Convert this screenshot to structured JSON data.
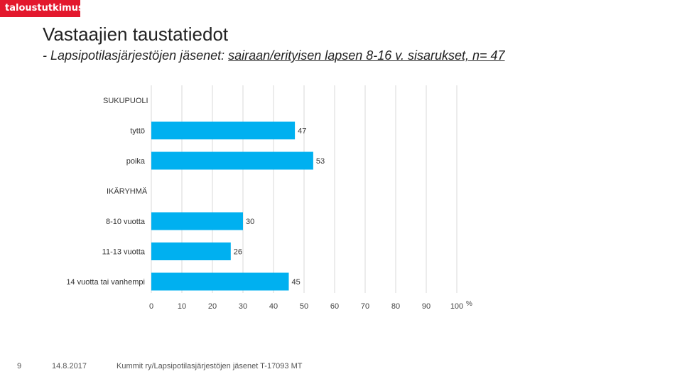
{
  "brand": {
    "logo_text": "taloustutkimus",
    "color": "#e3182d"
  },
  "header": {
    "title": "Vastaajien taustatiedot",
    "subtitle_prefix": "- Lapsipotilasjärjestöjen jäsenet: ",
    "subtitle_underlined": "sairaan/erityisen lapsen 8-16 v. sisarukset, n= 47"
  },
  "chart_data": {
    "type": "bar",
    "orientation": "horizontal",
    "unit_label": "%",
    "xlim": [
      0,
      100
    ],
    "ticks": [
      "0",
      "10",
      "20",
      "30",
      "40",
      "50",
      "60",
      "70",
      "80",
      "90",
      "100"
    ],
    "bar_color": "#00b0f0",
    "rows": [
      {
        "kind": "heading",
        "label": "SUKUPUOLI"
      },
      {
        "kind": "bar",
        "label": "tyttö",
        "value": 47
      },
      {
        "kind": "bar",
        "label": "poika",
        "value": 53
      },
      {
        "kind": "heading",
        "label": "IKÄRYHMÄ"
      },
      {
        "kind": "bar",
        "label": "8-10 vuotta",
        "value": 30
      },
      {
        "kind": "bar",
        "label": "11-13 vuotta",
        "value": 26
      },
      {
        "kind": "bar",
        "label": "14 vuotta tai vanhempi",
        "value": 45
      }
    ]
  },
  "footer": {
    "page_number": "9",
    "date": "14.8.2017",
    "source": "Kummit ry/Lapsipotilasjärjestöjen jäsenet T-17093 MT"
  }
}
